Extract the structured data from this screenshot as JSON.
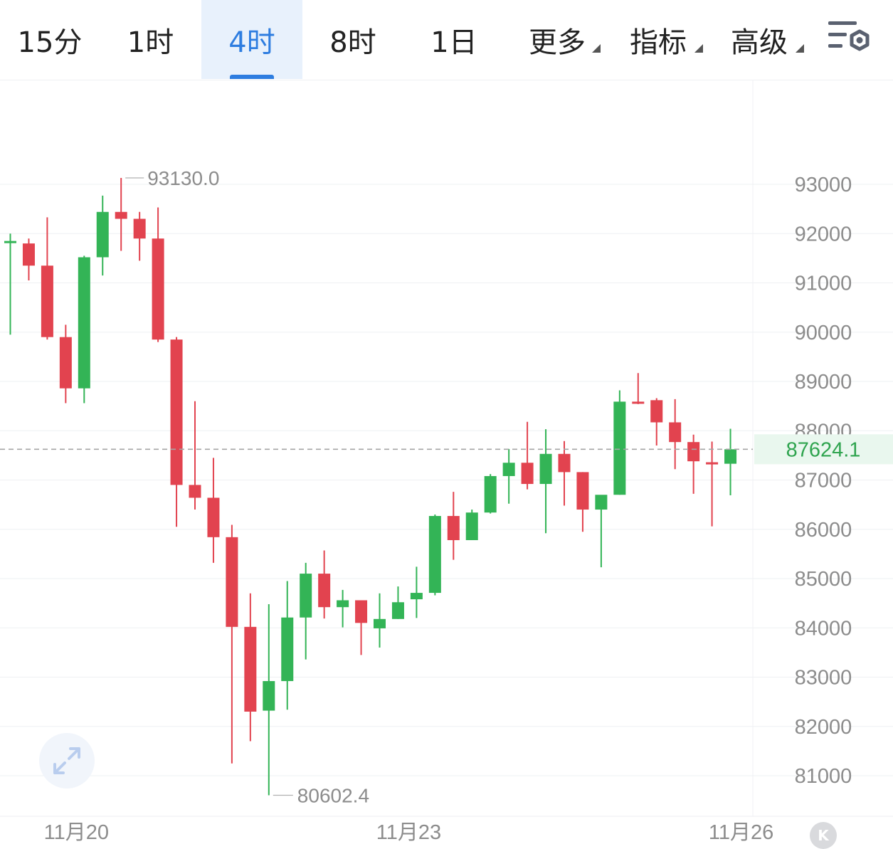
{
  "tabs": [
    {
      "label": "15分",
      "active": false,
      "dropdown": false
    },
    {
      "label": "1时",
      "active": false,
      "dropdown": false
    },
    {
      "label": "4时",
      "active": true,
      "dropdown": false
    },
    {
      "label": "8时",
      "active": false,
      "dropdown": false
    },
    {
      "label": "1日",
      "active": false,
      "dropdown": false
    },
    {
      "label": "更多",
      "active": false,
      "dropdown": true
    },
    {
      "label": "指标",
      "active": false,
      "dropdown": true
    },
    {
      "label": "高级",
      "active": false,
      "dropdown": true
    }
  ],
  "toolbar": {
    "settings_icon": "chart-settings-icon",
    "expand_icon": "expand-arrows-icon",
    "kline_badge": "K"
  },
  "colors": {
    "up": "#33b456",
    "down": "#e2434f",
    "accent": "#2e7de0",
    "grid": "#eef0f3",
    "axis_text": "#8c8c8c"
  },
  "chart_data": {
    "type": "candlestick",
    "interval": "4时",
    "y_ticks": [
      93000,
      92000,
      91000,
      90000,
      89000,
      88000,
      87000,
      86000,
      85000,
      84000,
      83000,
      82000,
      81000
    ],
    "x_labels": [
      {
        "index": 3,
        "label": "11月20"
      },
      {
        "index": 21,
        "label": "11月23"
      },
      {
        "index": 39,
        "label": "11月26"
      }
    ],
    "last_price": {
      "label": "87624.1",
      "value": 87624.1
    },
    "max_marker": {
      "label": "93130.0",
      "value": 93130.0,
      "index": 6
    },
    "min_marker": {
      "label": "80602.4",
      "value": 80602.4,
      "index": 14
    },
    "candles": [
      {
        "o": 91850,
        "h": 92000,
        "l": 89950,
        "c": 91850
      },
      {
        "o": 91800,
        "h": 91900,
        "l": 91050,
        "c": 91350
      },
      {
        "o": 91350,
        "h": 92330,
        "l": 89850,
        "c": 89900
      },
      {
        "o": 89900,
        "h": 90150,
        "l": 88560,
        "c": 88860
      },
      {
        "o": 88860,
        "h": 91550,
        "l": 88560,
        "c": 91520
      },
      {
        "o": 91520,
        "h": 92770,
        "l": 91150,
        "c": 92440
      },
      {
        "o": 92440,
        "h": 93130,
        "l": 91650,
        "c": 92300
      },
      {
        "o": 92300,
        "h": 92440,
        "l": 91450,
        "c": 91900
      },
      {
        "o": 91900,
        "h": 92530,
        "l": 89800,
        "c": 89850
      },
      {
        "o": 89850,
        "h": 89900,
        "l": 86050,
        "c": 86900
      },
      {
        "o": 86900,
        "h": 88600,
        "l": 86400,
        "c": 86640
      },
      {
        "o": 86640,
        "h": 87450,
        "l": 85320,
        "c": 85840
      },
      {
        "o": 85840,
        "h": 86090,
        "l": 81250,
        "c": 84020
      },
      {
        "o": 84020,
        "h": 84700,
        "l": 81700,
        "c": 82300
      },
      {
        "o": 82320,
        "h": 84480,
        "l": 80602.4,
        "c": 82920
      },
      {
        "o": 82920,
        "h": 84950,
        "l": 82340,
        "c": 84210
      },
      {
        "o": 84210,
        "h": 85320,
        "l": 83360,
        "c": 85100
      },
      {
        "o": 85100,
        "h": 85570,
        "l": 84190,
        "c": 84420
      },
      {
        "o": 84420,
        "h": 84770,
        "l": 84010,
        "c": 84560
      },
      {
        "o": 84560,
        "h": 84560,
        "l": 83450,
        "c": 84100
      },
      {
        "o": 83990,
        "h": 84700,
        "l": 83600,
        "c": 84180
      },
      {
        "o": 84180,
        "h": 84840,
        "l": 84180,
        "c": 84520
      },
      {
        "o": 84580,
        "h": 85240,
        "l": 84200,
        "c": 84710
      },
      {
        "o": 84710,
        "h": 86300,
        "l": 84660,
        "c": 86270
      },
      {
        "o": 86270,
        "h": 86760,
        "l": 85380,
        "c": 85780
      },
      {
        "o": 85780,
        "h": 86400,
        "l": 85780,
        "c": 86340
      },
      {
        "o": 86340,
        "h": 87120,
        "l": 86320,
        "c": 87080
      },
      {
        "o": 87080,
        "h": 87630,
        "l": 86520,
        "c": 87350
      },
      {
        "o": 87350,
        "h": 88180,
        "l": 86810,
        "c": 86920
      },
      {
        "o": 86920,
        "h": 88030,
        "l": 85920,
        "c": 87530
      },
      {
        "o": 87530,
        "h": 87790,
        "l": 86480,
        "c": 87160
      },
      {
        "o": 87160,
        "h": 87160,
        "l": 85950,
        "c": 86400
      },
      {
        "o": 86400,
        "h": 86680,
        "l": 85230,
        "c": 86700
      },
      {
        "o": 86700,
        "h": 88820,
        "l": 86700,
        "c": 88590
      },
      {
        "o": 88590,
        "h": 89170,
        "l": 88540,
        "c": 88560
      },
      {
        "o": 88620,
        "h": 88660,
        "l": 87700,
        "c": 88170
      },
      {
        "o": 88170,
        "h": 88640,
        "l": 87220,
        "c": 87770
      },
      {
        "o": 87770,
        "h": 87920,
        "l": 86720,
        "c": 87380
      },
      {
        "o": 87360,
        "h": 87780,
        "l": 86060,
        "c": 87330
      },
      {
        "o": 87330,
        "h": 88040,
        "l": 86690,
        "c": 87624.1
      }
    ]
  }
}
